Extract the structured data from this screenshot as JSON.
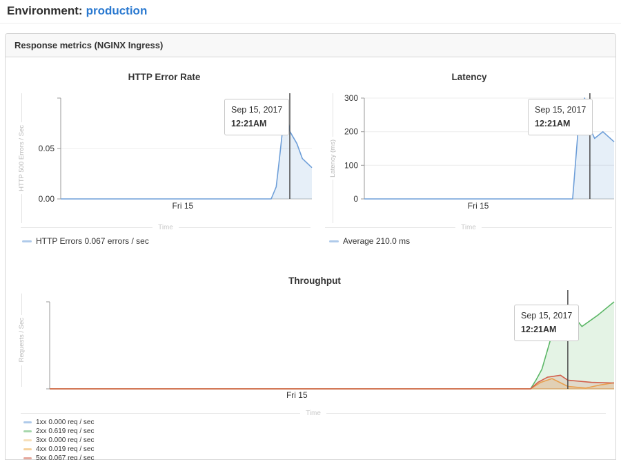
{
  "page": {
    "environment_label": "Environment:",
    "environment_value": "production"
  },
  "panel": {
    "title": "Response metrics (NGINX Ingress)"
  },
  "colors": {
    "link_blue": "#2a79d0",
    "series_blue": "#6d9ed8",
    "series_green": "#5cb767",
    "series_yellow": "#eec580",
    "series_orange": "#efad4d",
    "series_red": "#d2604c",
    "cursor": "#4a4a4a"
  },
  "chart_data": [
    {
      "type": "area",
      "title": "HTTP Error Rate",
      "ylabel": "HTTP 500 Errors / Sec",
      "xlabel": "Time",
      "x_tick": {
        "label": "Fri 15",
        "pos": 0.486
      },
      "y_max": 0.1,
      "y_ticks": [
        {
          "value": 0,
          "label": "0.00",
          "grid": false
        },
        {
          "value": 0.05,
          "label": "0.05",
          "grid": true
        },
        {
          "value": 0.1,
          "label": "",
          "grid": false
        }
      ],
      "cursor_pos": 0.912,
      "tooltip": {
        "date": "Sep 15, 2017",
        "time": "12:21AM"
      },
      "series": [
        {
          "name": "HTTP Errors",
          "color": "#6d9ed8",
          "points": [
            [
              0,
              0
            ],
            [
              0.838,
              0
            ],
            [
              0.858,
              0.012
            ],
            [
              0.871,
              0.04
            ],
            [
              0.885,
              0.072
            ],
            [
              0.891,
              0.098
            ],
            [
              0.912,
              0.067
            ],
            [
              0.94,
              0.055
            ],
            [
              0.962,
              0.04
            ],
            [
              1,
              0.031
            ]
          ]
        }
      ],
      "legend": [
        {
          "label": "HTTP Errors 0.067 errors / sec",
          "color": "#6d9ed8"
        }
      ]
    },
    {
      "type": "area",
      "title": "Latency",
      "ylabel": "Latency (ms)",
      "xlabel": "Time",
      "x_tick": {
        "label": "Fri 15",
        "pos": 0.456
      },
      "y_max": 300,
      "y_ticks": [
        {
          "value": 0,
          "label": "0",
          "grid": false
        },
        {
          "value": 100,
          "label": "100",
          "grid": true
        },
        {
          "value": 200,
          "label": "200",
          "grid": true
        },
        {
          "value": 300,
          "label": "300",
          "grid": true
        }
      ],
      "cursor_pos": 0.903,
      "tooltip": {
        "date": "Sep 15, 2017",
        "time": "12:21AM"
      },
      "series": [
        {
          "name": "Average",
          "color": "#6d9ed8",
          "points": [
            [
              0,
              0
            ],
            [
              0.834,
              0
            ],
            [
              0.85,
              150
            ],
            [
              0.858,
              225
            ],
            [
              0.868,
              215
            ],
            [
              0.882,
              300
            ],
            [
              0.903,
              210
            ],
            [
              0.922,
              180
            ],
            [
              0.955,
              200
            ],
            [
              1,
              170
            ]
          ]
        }
      ],
      "legend": [
        {
          "label": "Average 210.0 ms",
          "color": "#6d9ed8"
        }
      ]
    },
    {
      "type": "area",
      "title": "Throughput",
      "ylabel": "Requests / Sec",
      "xlabel": "Time",
      "x_tick": {
        "label": "Fri 15",
        "pos": 0.438
      },
      "y_max": 0.67,
      "y_ticks": [
        {
          "value": 0,
          "label": "",
          "grid": false
        },
        {
          "value": 0.67,
          "label": "",
          "grid": false
        }
      ],
      "cursor_pos": 0.918,
      "tooltip": {
        "date": "Sep 15, 2017",
        "time": "12:21AM"
      },
      "series": [
        {
          "name": "1xx",
          "color": "#6d9ed8",
          "points": [
            [
              0,
              0
            ],
            [
              1,
              0
            ]
          ]
        },
        {
          "name": "2xx",
          "color": "#5cb767",
          "points": [
            [
              0,
              0
            ],
            [
              0.852,
              0
            ],
            [
              0.862,
              0.07
            ],
            [
              0.872,
              0.15
            ],
            [
              0.892,
              0.45
            ],
            [
              0.905,
              0.59
            ],
            [
              0.918,
              0.619
            ],
            [
              0.943,
              0.48
            ],
            [
              0.972,
              0.57
            ],
            [
              1,
              0.67
            ]
          ]
        },
        {
          "name": "3xx",
          "color": "#eec580",
          "points": [
            [
              0,
              0
            ],
            [
              1,
              0
            ]
          ]
        },
        {
          "name": "4xx",
          "color": "#efad4d",
          "points": [
            [
              0,
              0
            ],
            [
              0.852,
              0
            ],
            [
              0.87,
              0.05
            ],
            [
              0.89,
              0.079
            ],
            [
              0.918,
              0.019
            ],
            [
              0.95,
              0.006
            ],
            [
              0.975,
              0.03
            ],
            [
              1,
              0.047
            ]
          ]
        },
        {
          "name": "5xx",
          "color": "#d2604c",
          "points": [
            [
              0,
              0
            ],
            [
              0.852,
              0
            ],
            [
              0.865,
              0.05
            ],
            [
              0.882,
              0.09
            ],
            [
              0.905,
              0.105
            ],
            [
              0.918,
              0.067
            ],
            [
              0.96,
              0.05
            ],
            [
              1,
              0.045
            ]
          ]
        }
      ],
      "legend": [
        {
          "label": "1xx 0.000 req / sec",
          "color": "#6d9ed8"
        },
        {
          "label": "2xx 0.619 req / sec",
          "color": "#5cb767"
        },
        {
          "label": "3xx 0.000 req / sec",
          "color": "#eec580"
        },
        {
          "label": "4xx 0.019 req / sec",
          "color": "#efad4d"
        },
        {
          "label": "5xx 0.067 req / sec",
          "color": "#d2604c"
        }
      ]
    }
  ]
}
